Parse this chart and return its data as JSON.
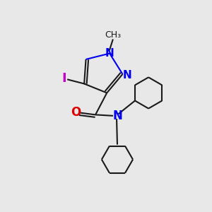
{
  "background_color": "#e8e8e8",
  "bond_color": "#1a1a1a",
  "nitrogen_color": "#0000ee",
  "oxygen_color": "#dd0000",
  "iodine_color": "#cc00cc",
  "figsize": [
    3.0,
    3.0
  ],
  "dpi": 100,
  "xlim": [
    0,
    10
  ],
  "ylim": [
    0,
    10
  ]
}
